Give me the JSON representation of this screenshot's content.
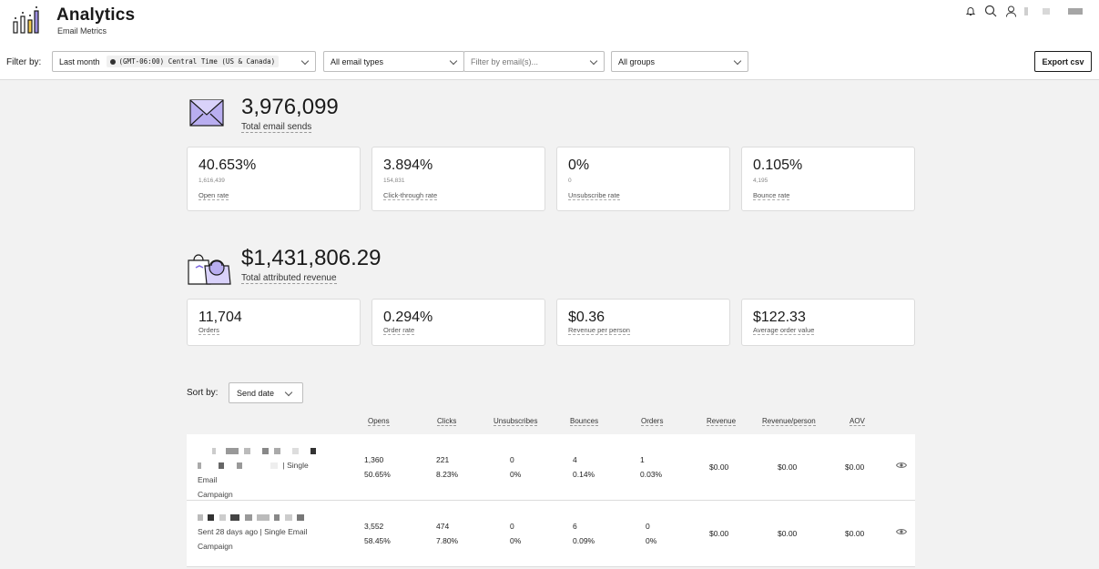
{
  "app": {
    "title": "Analytics",
    "subtitle": "Email Metrics"
  },
  "header_icons": [
    "bell-icon",
    "search-icon",
    "user-icon"
  ],
  "filters": {
    "label": "Filter by:",
    "date_range": "Last month",
    "timezone": "(GMT-06:00) Central Time (US & Canada)",
    "email_type": "All email types",
    "email_filter_placeholder": "Filter by email(s)...",
    "groups": "All groups",
    "export_label": "Export csv"
  },
  "sends": {
    "total": "3,976,099",
    "total_label": "Total email sends",
    "cards": [
      {
        "value": "40.653%",
        "count": "1,616,439",
        "label": "Open rate"
      },
      {
        "value": "3.894%",
        "count": "154,831",
        "label": "Click-through rate"
      },
      {
        "value": "0%",
        "count": "0",
        "label": "Unsubscribe rate"
      },
      {
        "value": "0.105%",
        "count": "4,195",
        "label": "Bounce rate"
      }
    ]
  },
  "revenue": {
    "total": "$1,431,806.29",
    "total_label": "Total attributed revenue",
    "cards": [
      {
        "value": "11,704",
        "label": "Orders"
      },
      {
        "value": "0.294%",
        "label": "Order rate"
      },
      {
        "value": "$0.36",
        "label": "Revenue per person"
      },
      {
        "value": "$122.33",
        "label": "Average order value"
      }
    ]
  },
  "sort": {
    "label": "Sort by:",
    "value": "Send date"
  },
  "table": {
    "columns": [
      "Opens",
      "Clicks",
      "Unsubscribes",
      "Bounces",
      "Orders",
      "Revenue",
      "Revenue/person",
      "AOV"
    ],
    "rows": [
      {
        "meta": "| Single Email",
        "meta2": "Campaign",
        "opens": [
          "1,360",
          "50.65%"
        ],
        "clicks": [
          "221",
          "8.23%"
        ],
        "unsubscribes": [
          "0",
          "0%"
        ],
        "bounces": [
          "4",
          "0.14%"
        ],
        "orders": [
          "1",
          "0.03%"
        ],
        "revenue": "$0.00",
        "revenue_per_person": "$0.00",
        "aov": "$0.00"
      },
      {
        "meta": "Sent 28 days ago | Single Email",
        "meta2": "Campaign",
        "opens": [
          "3,552",
          "58.45%"
        ],
        "clicks": [
          "474",
          "7.80%"
        ],
        "unsubscribes": [
          "0",
          "0%"
        ],
        "bounces": [
          "6",
          "0.09%"
        ],
        "orders": [
          "0",
          "0%"
        ],
        "revenue": "$0.00",
        "revenue_per_person": "$0.00",
        "aov": "$0.00"
      }
    ]
  }
}
